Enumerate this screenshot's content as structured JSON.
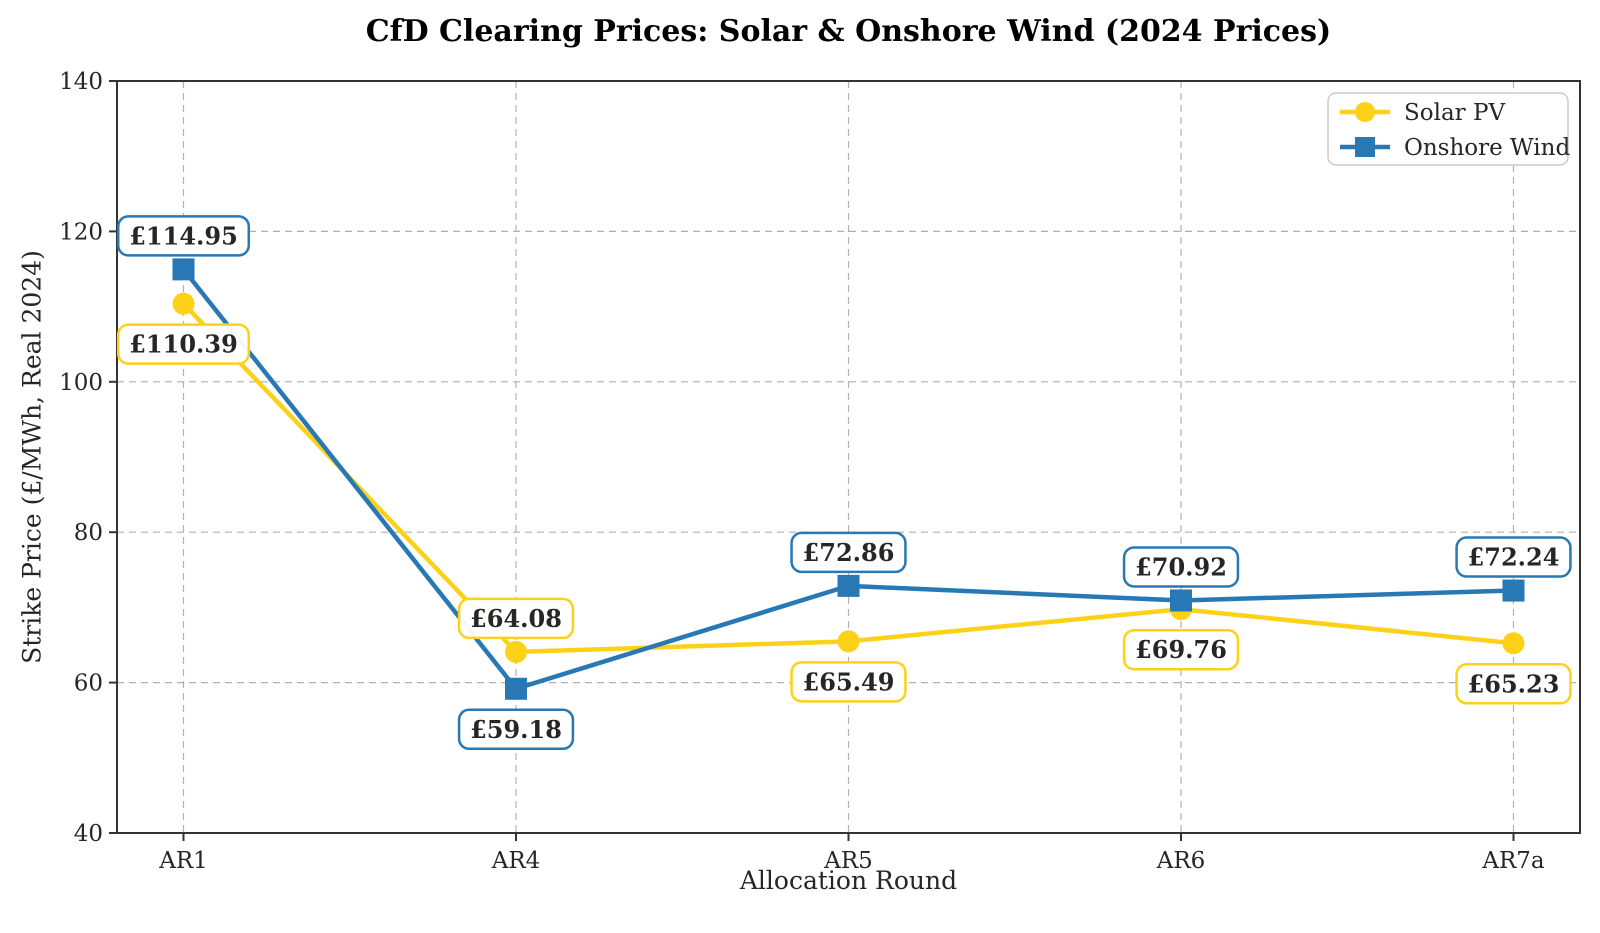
{
  "chart_data": {
    "type": "line",
    "title": "CfD Clearing Prices: Solar & Onshore Wind (2024 Prices)",
    "xlabel": "Allocation Round",
    "ylabel": "Strike Price (£/MWh, Real 2024)",
    "categories": [
      "AR1",
      "AR4",
      "AR5",
      "AR6",
      "AR7a"
    ],
    "ylim": [
      40,
      140
    ],
    "yticks": [
      40,
      60,
      80,
      100,
      120,
      140
    ],
    "grid": "dashed, both axes",
    "legend_position": "upper right",
    "series": [
      {
        "name": "Solar PV",
        "marker": "circle",
        "color": "#FDD117",
        "values": [
          110.39,
          64.08,
          65.49,
          69.76,
          65.23
        ],
        "labels": [
          "£110.39",
          "£64.08",
          "£65.49",
          "£69.76",
          "£65.23"
        ],
        "label_positions": [
          "below",
          "above",
          "below",
          "below",
          "below"
        ]
      },
      {
        "name": "Onshore Wind",
        "marker": "square",
        "color": "#2878B5",
        "values": [
          114.95,
          59.18,
          72.86,
          70.92,
          72.24
        ],
        "labels": [
          "£114.95",
          "£59.18",
          "£72.86",
          "£70.92",
          "£72.24"
        ],
        "label_positions": [
          "above",
          "below",
          "above",
          "above",
          "above"
        ]
      }
    ],
    "style": {
      "grid_color": "#b0b0b0",
      "spine_color": "#333333",
      "tick_label_color": "#262626",
      "label_box_fill": "#ffffff",
      "label_text_color": "#000000",
      "legend_border_color": "#cccccc"
    }
  }
}
